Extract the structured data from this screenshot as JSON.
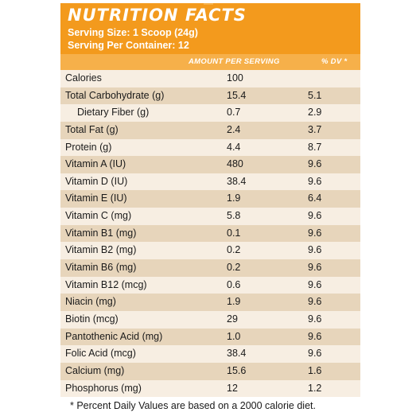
{
  "header": {
    "title": "NUTRITION FACTS",
    "serving_size": "Serving Size: 1 Scoop (24g)",
    "servings_per_container": "Serving Per Container: 12"
  },
  "columns": {
    "amount": "AMOUNT PER SERVING",
    "dv": "% DV *"
  },
  "rows": [
    {
      "label": "Calories",
      "amount": "100",
      "dv": ""
    },
    {
      "label": "Total Carbohydrate (g)",
      "amount": "15.4",
      "dv": "5.1"
    },
    {
      "label": "Dietary Fiber (g)",
      "amount": "0.7",
      "dv": "2.9"
    },
    {
      "label": "Total Fat (g)",
      "amount": "2.4",
      "dv": "3.7"
    },
    {
      "label": "Protein (g)",
      "amount": "4.4",
      "dv": "8.7"
    },
    {
      "label": "Vitamin A (IU)",
      "amount": "480",
      "dv": "9.6"
    },
    {
      "label": "Vitamin D (IU)",
      "amount": "38.4",
      "dv": "9.6"
    },
    {
      "label": "Vitamin E (IU)",
      "amount": "1.9",
      "dv": "6.4"
    },
    {
      "label": "Vitamin C (mg)",
      "amount": "5.8",
      "dv": "9.6"
    },
    {
      "label": "Vitamin B1 (mg)",
      "amount": "0.1",
      "dv": "9.6"
    },
    {
      "label": "Vitamin B2 (mg)",
      "amount": "0.2",
      "dv": "9.6"
    },
    {
      "label": "Vitamin B6 (mg)",
      "amount": "0.2",
      "dv": "9.6"
    },
    {
      "label": "Vitamin B12 (mcg)",
      "amount": "0.6",
      "dv": "9.6"
    },
    {
      "label": "Niacin (mg)",
      "amount": "1.9",
      "dv": "9.6"
    },
    {
      "label": "Biotin (mcg)",
      "amount": "29",
      "dv": "9.6"
    },
    {
      "label": "Pantothenic Acid (mg)",
      "amount": "1.0",
      "dv": "9.6"
    },
    {
      "label": "Folic Acid (mcg)",
      "amount": "38.4",
      "dv": "9.6"
    },
    {
      "label": "Calcium (mg)",
      "amount": "15.6",
      "dv": "1.6"
    },
    {
      "label": "Phosphorus (mg)",
      "amount": "12",
      "dv": "1.2"
    }
  ],
  "footnote": "* Percent Daily Values are based on a 2000 calorie diet.",
  "colors": {
    "header": "#f39a1d",
    "column_header": "#f6b04a",
    "row_light": "#f7eee2",
    "row_dark": "#e7d5bb"
  }
}
